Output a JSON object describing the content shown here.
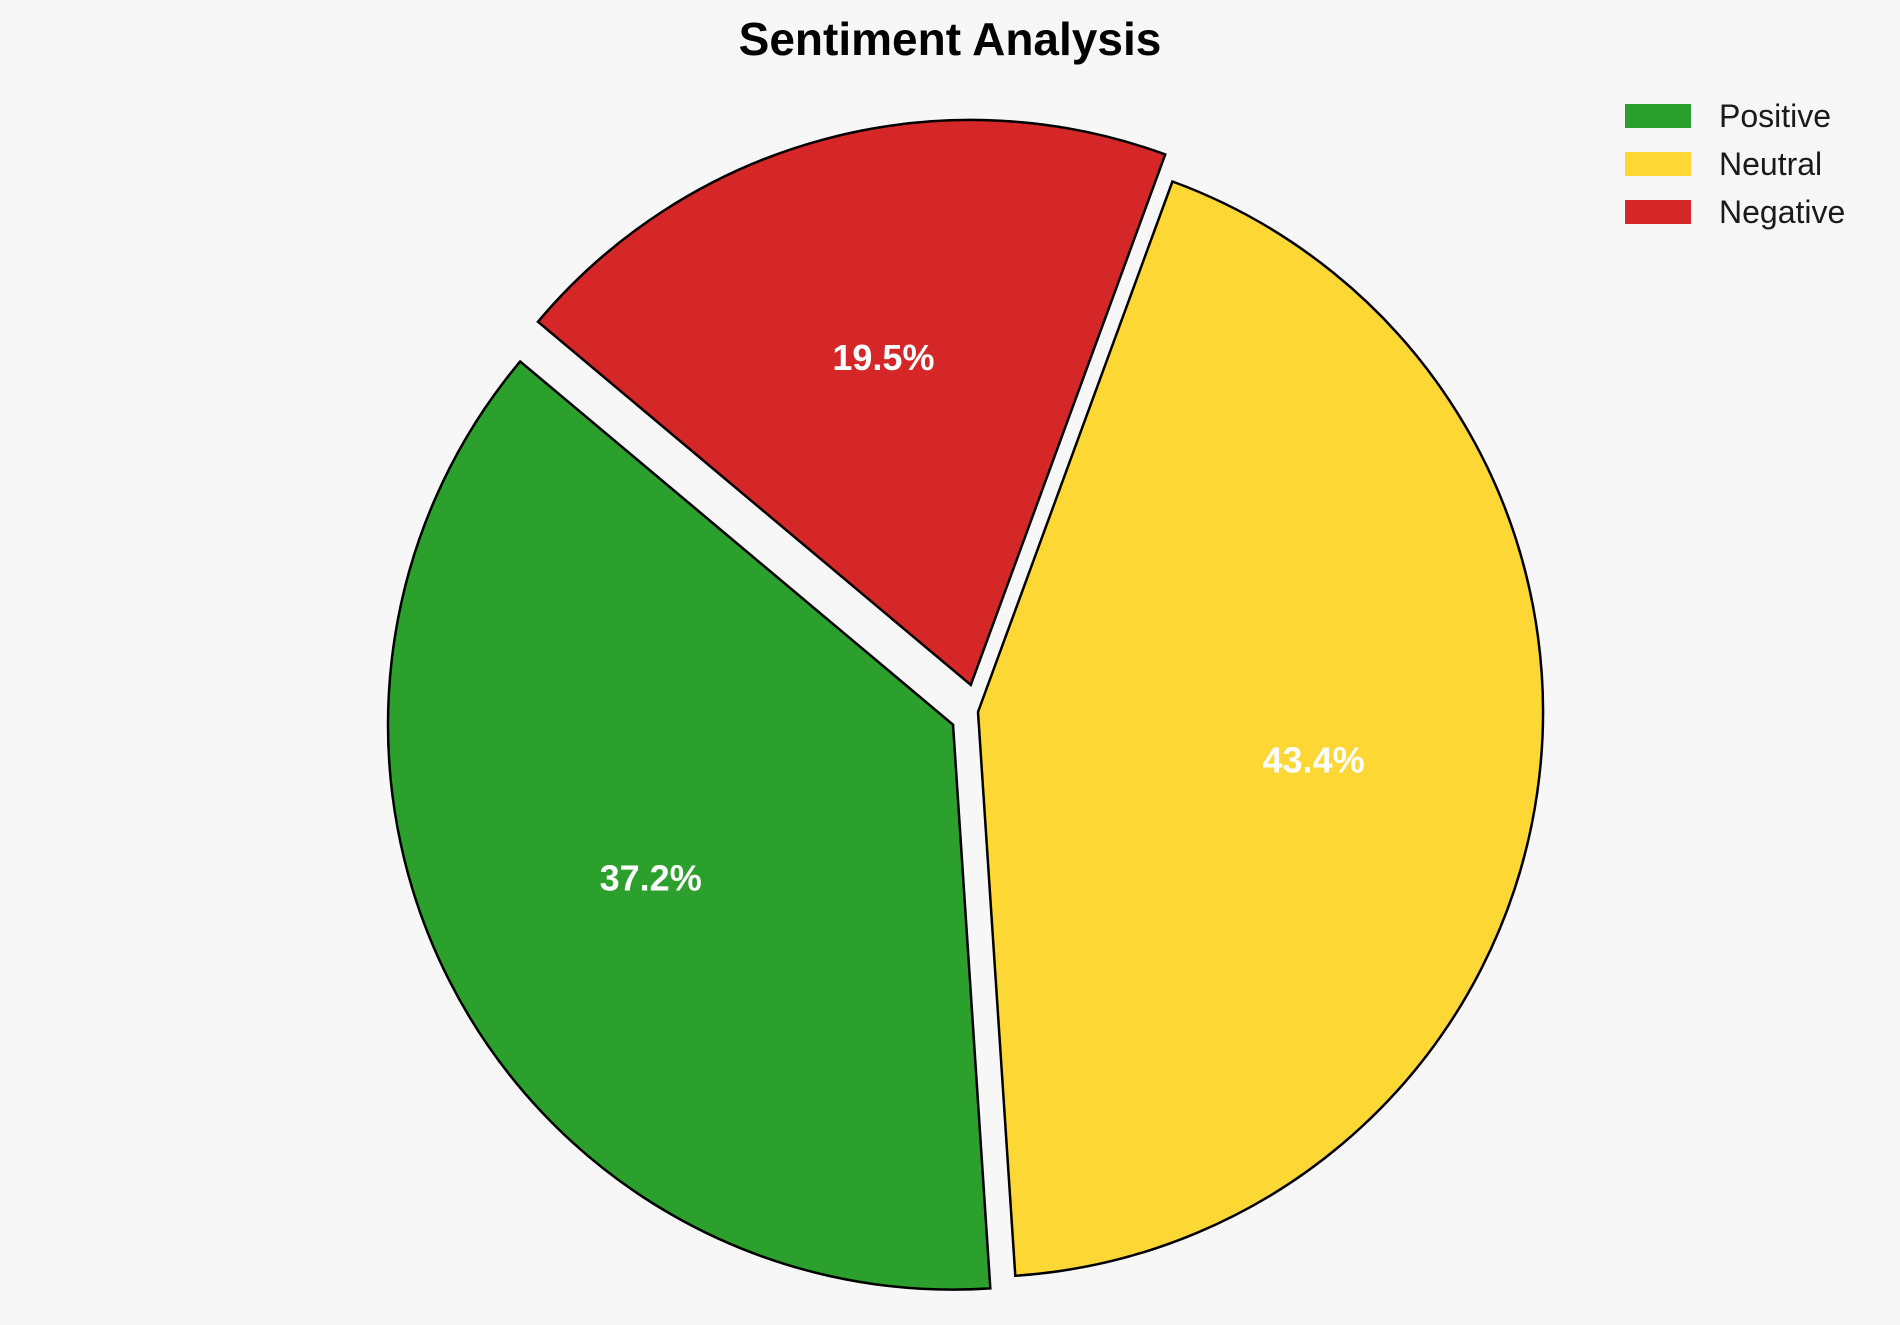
{
  "chart_data": {
    "type": "pie",
    "title": "Sentiment Analysis",
    "slices": [
      {
        "label": "Positive",
        "value": 37.2,
        "display": "37.2%",
        "color": "#2ca02c",
        "explode": true
      },
      {
        "label": "Neutral",
        "value": 43.4,
        "display": "43.4%",
        "color": "#fdd835",
        "explode": false
      },
      {
        "label": "Negative",
        "value": 19.5,
        "display": "19.5%",
        "color": "#d62728",
        "explode": true
      }
    ],
    "legend": {
      "placement": "top-right",
      "entries": [
        "Positive",
        "Neutral",
        "Negative"
      ]
    },
    "start_angle_deg": 140,
    "direction": "counterclockwise",
    "slice_edge_color": "#000000",
    "label_color": "#ffffff"
  }
}
